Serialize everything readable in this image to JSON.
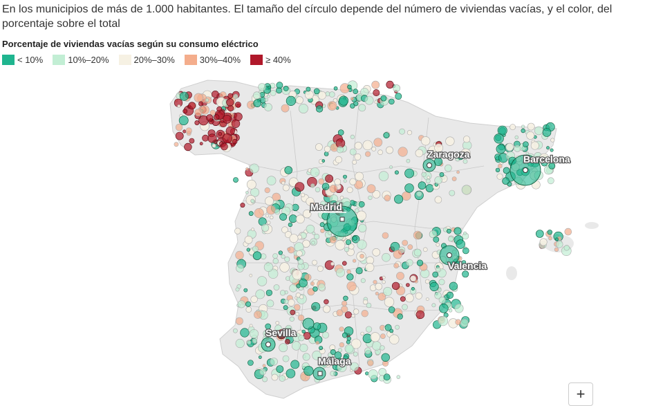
{
  "subtitle": "En los municipios de más de 1.000 habitantes. El tamaño del círculo depende del número de viviendas vacías, y el color, del porcentaje sobre el total",
  "legend": {
    "title": "Porcentaje de viviendas vacías según su consumo eléctrico",
    "items": [
      {
        "label": "< 10%",
        "color": "#1fb58f"
      },
      {
        "label": "10%–20%",
        "color": "#c2eed4"
      },
      {
        "label": "20%–30%",
        "color": "#f6f1e3"
      },
      {
        "label": "30%–40%",
        "color": "#f4ad8c"
      },
      {
        "label": "≥ 40%",
        "color": "#b0182a"
      }
    ]
  },
  "cities": [
    {
      "name": "Zaragoza"
    },
    {
      "name": "Barcelona"
    },
    {
      "name": "Madrid"
    },
    {
      "name": "Valencia"
    },
    {
      "name": "Sevilla"
    },
    {
      "name": "Málaga"
    }
  ],
  "zoom_in_label": "+"
}
